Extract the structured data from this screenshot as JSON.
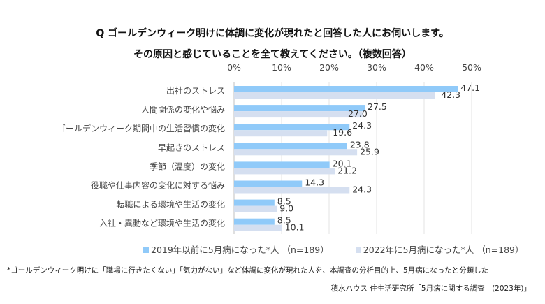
{
  "title_line1": "Q ゴールデンウィーク明けに体調に変化が現れたと回答した人にお伺いします。",
  "title_line2": "その原因と感じていることを全て教えてください。（複数回答）",
  "chart_data": {
    "type": "bar",
    "orientation": "horizontal",
    "categories": [
      "出社のストレス",
      "人間関係の変化や悩み",
      "ゴールデンウィーク期間中の生活習慣の変化",
      "早起きのストレス",
      "季節（温度）の変化",
      "役職や仕事内容の変化に対する悩み",
      "転職による環境や生活の変化",
      "入社・異動など環境や生活の変化"
    ],
    "series": [
      {
        "name": "2019年以前に5月病になった*人 （n=189）",
        "color": "#90CAF9",
        "values": [
          47.1,
          27.5,
          24.3,
          23.8,
          20.1,
          14.3,
          8.5,
          8.5
        ]
      },
      {
        "name": "2022年に5月病になった*人 （n=189）",
        "color": "#D5DFF0",
        "values": [
          42.3,
          27.0,
          19.6,
          25.9,
          21.2,
          24.3,
          9.0,
          10.1
        ]
      }
    ],
    "xlim": [
      0,
      50
    ],
    "xticks": [
      "0%",
      "10%",
      "20%",
      "30%",
      "40%",
      "50%"
    ],
    "xaxis_position": "top",
    "grid": true,
    "legend_position": "bottom"
  },
  "footnote": "*ゴールデンウィーク明けに「職場に行きたくない」「気力がない」など体調に変化が現れた人を、本調査の分析目的上、5月病になったと分類した",
  "source": "積水ハウス 住生活研究所「5月病に関する調査　(2023年)」"
}
